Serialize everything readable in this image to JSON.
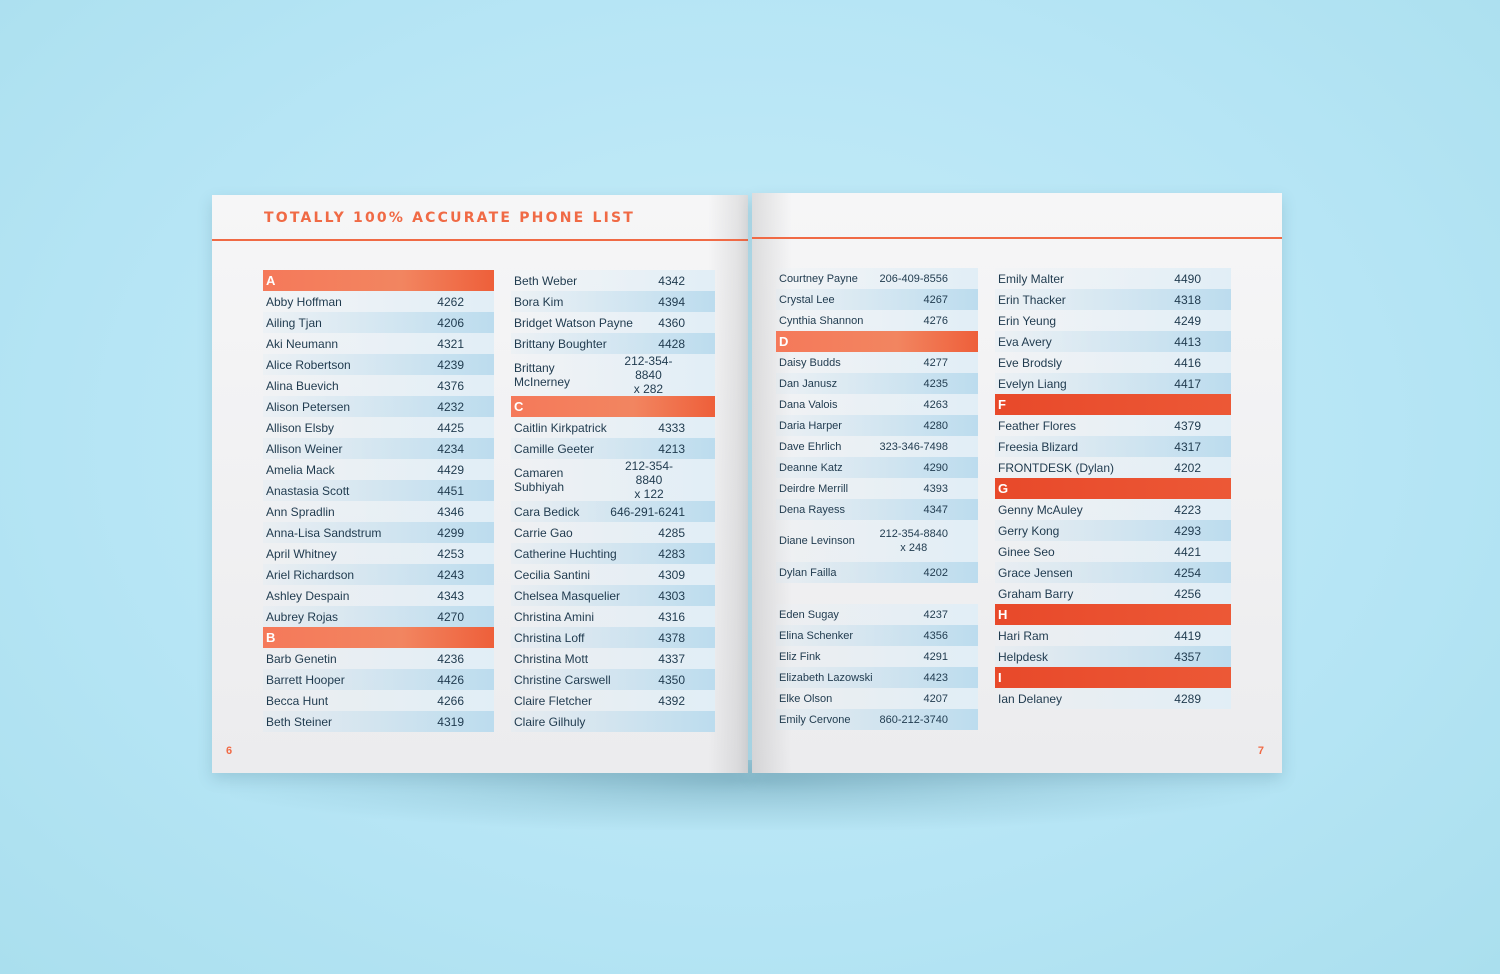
{
  "title": "TOTALLY 100% ACCURATE PHONE LIST",
  "page_numbers": {
    "left": "6",
    "right": "7"
  },
  "colors": {
    "accent": "#f06a45",
    "background": "#b6e5f5"
  },
  "columns": [
    [
      {
        "h": "A"
      },
      {
        "n": "Abby Hoffman",
        "p": "4262"
      },
      {
        "n": "Ailing Tjan",
        "p": "4206"
      },
      {
        "n": "Aki Neumann",
        "p": "4321"
      },
      {
        "n": "Alice Robertson",
        "p": "4239"
      },
      {
        "n": "Alina Buevich",
        "p": "4376"
      },
      {
        "n": "Alison Petersen",
        "p": "4232"
      },
      {
        "n": "Allison Elsby",
        "p": "4425"
      },
      {
        "n": "Allison Weiner",
        "p": "4234"
      },
      {
        "n": "Amelia Mack",
        "p": "4429"
      },
      {
        "n": "Anastasia Scott",
        "p": "4451"
      },
      {
        "n": "Ann Spradlin",
        "p": "4346"
      },
      {
        "n": "Anna-Lisa Sandstrum",
        "p": "4299"
      },
      {
        "n": "April Whitney",
        "p": "4253"
      },
      {
        "n": "Ariel Richardson",
        "p": "4243"
      },
      {
        "n": "Ashley Despain",
        "p": "4343"
      },
      {
        "n": "Aubrey Rojas",
        "p": "4270"
      },
      {
        "h": "B"
      },
      {
        "n": "Barb Genetin",
        "p": "4236"
      },
      {
        "n": "Barrett Hooper",
        "p": "4426"
      },
      {
        "n": "Becca Hunt",
        "p": "4266"
      },
      {
        "n": "Beth Steiner",
        "p": "4319"
      }
    ],
    [
      {
        "n": "Beth Weber",
        "p": "4342"
      },
      {
        "n": "Bora Kim",
        "p": "4394"
      },
      {
        "n": "Bridget Watson Payne",
        "p": "4360"
      },
      {
        "n": "Brittany Boughter",
        "p": "4428"
      },
      {
        "n": "Brittany McInerney",
        "p": "212-354-8840",
        "p2": "x 282"
      },
      {
        "h": "C"
      },
      {
        "n": "Caitlin Kirkpatrick",
        "p": "4333"
      },
      {
        "n": "Camille Geeter",
        "p": "4213"
      },
      {
        "n": "Camaren Subhiyah",
        "p": "212-354-8840",
        "p2": "x 122"
      },
      {
        "n": "Cara Bedick",
        "p": "646-291-6241"
      },
      {
        "n": "Carrie Gao",
        "p": "4285"
      },
      {
        "n": "Catherine Huchting",
        "p": "4283"
      },
      {
        "n": "Cecilia Santini",
        "p": "4309"
      },
      {
        "n": "Chelsea Masquelier",
        "p": "4303"
      },
      {
        "n": "Christina Amini",
        "p": "4316"
      },
      {
        "n": "Christina Loff",
        "p": "4378"
      },
      {
        "n": "Christina Mott",
        "p": "4337"
      },
      {
        "n": "Christine Carswell",
        "p": "4350"
      },
      {
        "n": "Claire Fletcher",
        "p": "4392"
      },
      {
        "n": "Claire Gilhuly",
        "p": ""
      }
    ],
    [
      {
        "n": "Courtney Payne",
        "p": "206-409-8556"
      },
      {
        "n": "Crystal Lee",
        "p": "4267"
      },
      {
        "n": "Cynthia Shannon",
        "p": "4276"
      },
      {
        "h": "D"
      },
      {
        "n": "Daisy Budds",
        "p": "4277"
      },
      {
        "n": "Dan Janusz",
        "p": "4235"
      },
      {
        "n": "Dana Valois",
        "p": "4263"
      },
      {
        "n": "Daria Harper",
        "p": "4280"
      },
      {
        "n": "Dave Ehrlich",
        "p": "323-346-7498"
      },
      {
        "n": "Deanne Katz",
        "p": "4290"
      },
      {
        "n": "Deirdre Merrill",
        "p": "4393"
      },
      {
        "n": "Dena Rayess",
        "p": "4347"
      },
      {
        "n": "Diane Levinson",
        "p": "212-354-8840",
        "p2": "x 248"
      },
      {
        "n": "Dylan Failla",
        "p": "4202"
      },
      {
        "s": true
      },
      {
        "n": "Eden Sugay",
        "p": "4237"
      },
      {
        "n": "Elina Schenker",
        "p": "4356"
      },
      {
        "n": "Eliz Fink",
        "p": "4291"
      },
      {
        "n": "Elizabeth Lazowski",
        "p": "4423"
      },
      {
        "n": "Elke Olson",
        "p": "4207"
      },
      {
        "n": "Emily Cervone",
        "p": "860-212-3740"
      }
    ],
    [
      {
        "n": "Emily Malter",
        "p": "4490"
      },
      {
        "n": "Erin Thacker",
        "p": "4318"
      },
      {
        "n": "Erin Yeung",
        "p": "4249"
      },
      {
        "n": "Eva Avery",
        "p": "4413"
      },
      {
        "n": "Eve Brodsly",
        "p": "4416"
      },
      {
        "n": "Evelyn Liang",
        "p": "4417"
      },
      {
        "h": "F"
      },
      {
        "n": "Feather Flores",
        "p": "4379"
      },
      {
        "n": "Freesia Blizard",
        "p": "4317"
      },
      {
        "n": "FRONTDESK (Dylan)",
        "p": "4202"
      },
      {
        "h": "G"
      },
      {
        "n": "Genny McAuley",
        "p": "4223"
      },
      {
        "n": "Gerry Kong",
        "p": "4293"
      },
      {
        "n": "Ginee Seo",
        "p": "4421"
      },
      {
        "n": "Grace Jensen",
        "p": "4254"
      },
      {
        "n": "Graham Barry",
        "p": "4256"
      },
      {
        "h": "H"
      },
      {
        "n": "Hari Ram",
        "p": "4419"
      },
      {
        "n": "Helpdesk",
        "p": "4357"
      },
      {
        "h": "I"
      },
      {
        "n": "Ian Delaney",
        "p": "4289"
      }
    ]
  ]
}
